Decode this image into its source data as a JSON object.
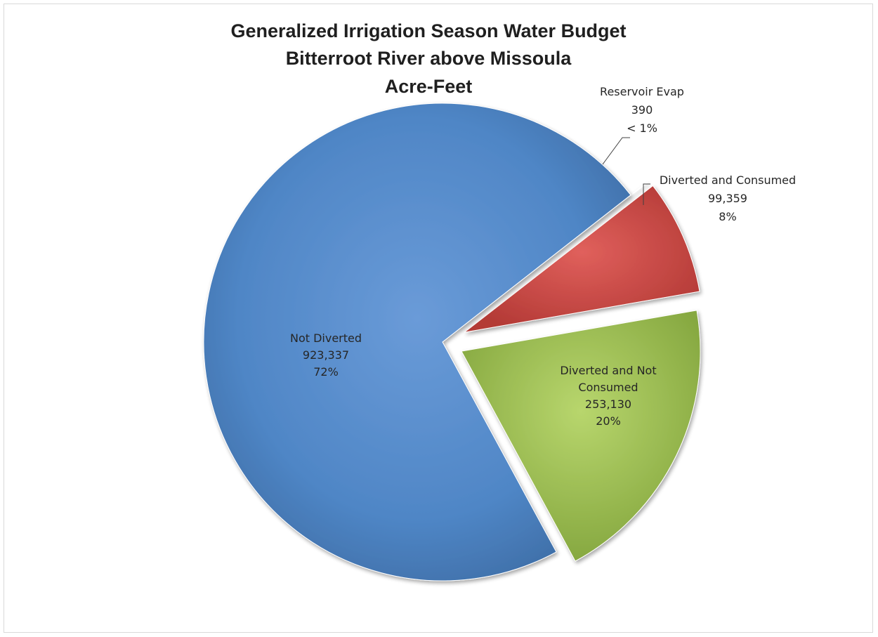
{
  "chart_data": {
    "type": "pie",
    "title": [
      "Generalized Irrigation Season Water Budget",
      "Bitterroot River above Missoula",
      "Acre-Feet"
    ],
    "slices": [
      {
        "id": "reservoir-evap",
        "label": [
          "Reservoir Evap",
          "390",
          "< 1%"
        ],
        "value": 390,
        "percent_label": "< 1%",
        "color": "#9bbb59"
      },
      {
        "id": "diverted-consumed",
        "label": [
          "Diverted and Consumed",
          "99,359",
          "8%"
        ],
        "value": 99359,
        "percent_label": "8%",
        "color": "#c0504d"
      },
      {
        "id": "diverted-not-consumed",
        "label": [
          "Diverted and Not",
          "Consumed",
          "253,130",
          "20%"
        ],
        "value": 253130,
        "percent_label": "20%",
        "color": "#9bbb59"
      },
      {
        "id": "not-diverted",
        "label": [
          "Not Diverted",
          "923,337",
          "72%"
        ],
        "value": 923337,
        "percent_label": "72%",
        "color": "#4f81bd"
      }
    ],
    "legend": "none",
    "exploded": true
  }
}
